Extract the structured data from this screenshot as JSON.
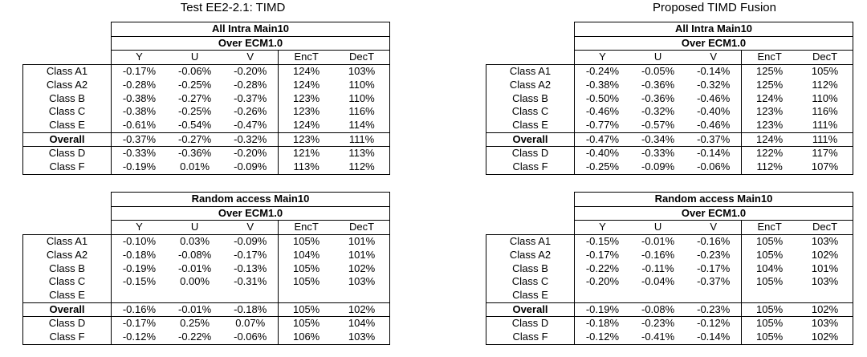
{
  "panels": [
    {
      "title": "Test EE2-2.1: TIMD",
      "tables": [
        {
          "title": "All Intra Main10",
          "subtitle": "Over ECM1.0",
          "columns": [
            "Y",
            "U",
            "V",
            "EncT",
            "DecT"
          ],
          "rows": [
            {
              "label": "Class A1",
              "cells": [
                "-0.17%",
                "-0.06%",
                "-0.20%",
                "124%",
                "103%"
              ]
            },
            {
              "label": "Class A2",
              "cells": [
                "-0.28%",
                "-0.25%",
                "-0.28%",
                "124%",
                "110%"
              ]
            },
            {
              "label": "Class B",
              "cells": [
                "-0.38%",
                "-0.27%",
                "-0.37%",
                "123%",
                "110%"
              ]
            },
            {
              "label": "Class C",
              "cells": [
                "-0.38%",
                "-0.25%",
                "-0.26%",
                "123%",
                "116%"
              ]
            },
            {
              "label": "Class E",
              "cells": [
                "-0.61%",
                "-0.54%",
                "-0.47%",
                "124%",
                "114%"
              ]
            },
            {
              "label": "Overall",
              "cells": [
                "-0.37%",
                "-0.27%",
                "-0.32%",
                "123%",
                "111%"
              ]
            },
            {
              "label": "Class D",
              "cells": [
                "-0.33%",
                "-0.36%",
                "-0.20%",
                "121%",
                "113%"
              ]
            },
            {
              "label": "Class F",
              "cells": [
                "-0.19%",
                "0.01%",
                "-0.09%",
                "113%",
                "112%"
              ]
            }
          ]
        },
        {
          "title": "Random access Main10",
          "subtitle": "Over ECM1.0",
          "columns": [
            "Y",
            "U",
            "V",
            "EncT",
            "DecT"
          ],
          "rows": [
            {
              "label": "Class A1",
              "cells": [
                "-0.10%",
                "0.03%",
                "-0.09%",
                "105%",
                "101%"
              ]
            },
            {
              "label": "Class A2",
              "cells": [
                "-0.18%",
                "-0.08%",
                "-0.17%",
                "104%",
                "101%"
              ]
            },
            {
              "label": "Class B",
              "cells": [
                "-0.19%",
                "-0.01%",
                "-0.13%",
                "105%",
                "102%"
              ]
            },
            {
              "label": "Class C",
              "cells": [
                "-0.15%",
                "0.00%",
                "-0.31%",
                "105%",
                "103%"
              ]
            },
            {
              "label": "Class E",
              "cells": [
                null,
                null,
                null,
                null,
                null
              ]
            },
            {
              "label": "Overall",
              "cells": [
                "-0.16%",
                "-0.01%",
                "-0.18%",
                "105%",
                "102%"
              ]
            },
            {
              "label": "Class D",
              "cells": [
                "-0.17%",
                "0.25%",
                "0.07%",
                "105%",
                "104%"
              ]
            },
            {
              "label": "Class F",
              "cells": [
                "-0.12%",
                "-0.22%",
                "-0.06%",
                "106%",
                "103%"
              ]
            }
          ]
        }
      ]
    },
    {
      "title": "Proposed TIMD Fusion",
      "tables": [
        {
          "title": "All Intra Main10",
          "subtitle": "Over ECM1.0",
          "columns": [
            "Y",
            "U",
            "V",
            "EncT",
            "DecT"
          ],
          "rows": [
            {
              "label": "Class A1",
              "cells": [
                "-0.24%",
                "-0.05%",
                "-0.14%",
                "125%",
                "105%"
              ]
            },
            {
              "label": "Class A2",
              "cells": [
                "-0.38%",
                "-0.36%",
                "-0.32%",
                "125%",
                "112%"
              ]
            },
            {
              "label": "Class B",
              "cells": [
                "-0.50%",
                "-0.36%",
                "-0.46%",
                "124%",
                "110%"
              ]
            },
            {
              "label": "Class C",
              "cells": [
                "-0.46%",
                "-0.32%",
                "-0.40%",
                "123%",
                "116%"
              ]
            },
            {
              "label": "Class E",
              "cells": [
                "-0.77%",
                "-0.57%",
                "-0.46%",
                "123%",
                "111%"
              ]
            },
            {
              "label": "Overall",
              "cells": [
                "-0.47%",
                "-0.34%",
                "-0.37%",
                "124%",
                "111%"
              ]
            },
            {
              "label": "Class D",
              "cells": [
                "-0.40%",
                "-0.33%",
                "-0.14%",
                "122%",
                "117%"
              ]
            },
            {
              "label": "Class F",
              "cells": [
                "-0.25%",
                "-0.09%",
                "-0.06%",
                "112%",
                "107%"
              ]
            }
          ]
        },
        {
          "title": "Random access Main10",
          "subtitle": "Over ECM1.0",
          "columns": [
            "Y",
            "U",
            "V",
            "EncT",
            "DecT"
          ],
          "rows": [
            {
              "label": "Class A1",
              "cells": [
                "-0.15%",
                "-0.01%",
                "-0.16%",
                "105%",
                "103%"
              ]
            },
            {
              "label": "Class A2",
              "cells": [
                "-0.17%",
                "-0.16%",
                "-0.23%",
                "105%",
                "102%"
              ]
            },
            {
              "label": "Class B",
              "cells": [
                "-0.22%",
                "-0.11%",
                "-0.17%",
                "104%",
                "101%"
              ]
            },
            {
              "label": "Class C",
              "cells": [
                "-0.20%",
                "-0.04%",
                "-0.37%",
                "105%",
                "103%"
              ]
            },
            {
              "label": "Class E",
              "cells": [
                null,
                null,
                null,
                null,
                null
              ]
            },
            {
              "label": "Overall",
              "cells": [
                "-0.19%",
                "-0.08%",
                "-0.23%",
                "105%",
                "102%"
              ]
            },
            {
              "label": "Class D",
              "cells": [
                "-0.18%",
                "-0.23%",
                "-0.12%",
                "105%",
                "103%"
              ]
            },
            {
              "label": "Class F",
              "cells": [
                "-0.12%",
                "-0.41%",
                "-0.14%",
                "105%",
                "102%"
              ]
            }
          ]
        }
      ]
    }
  ]
}
